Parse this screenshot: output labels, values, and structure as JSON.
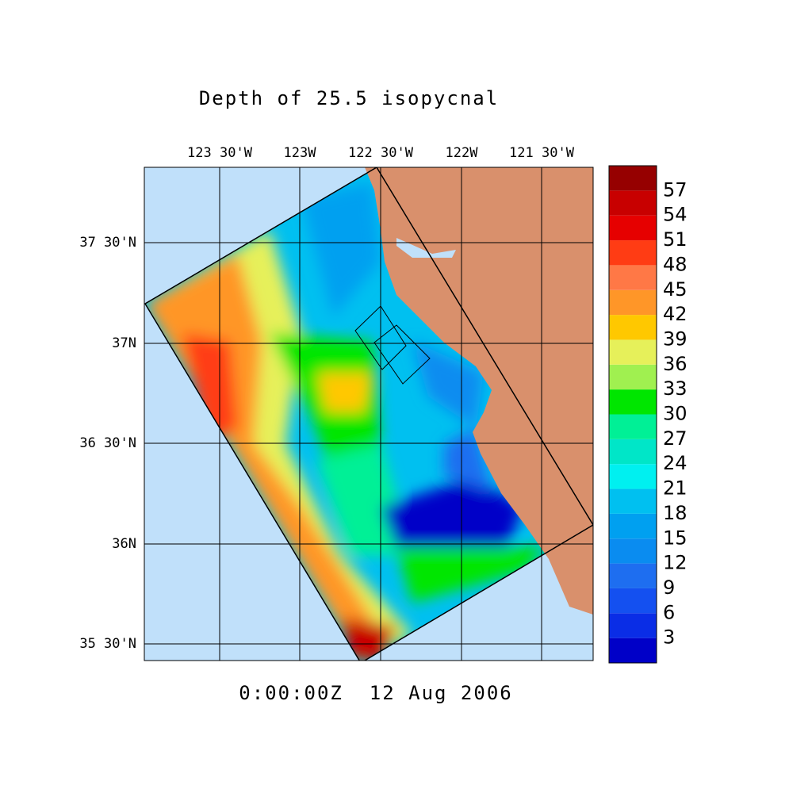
{
  "map": {
    "title": "Depth of 25.5 isopycnal",
    "lon_labels": [
      "123 30'W",
      "123W",
      "122 30'W",
      "122W",
      "121 30'W"
    ],
    "lat_labels": [
      "37 30'N",
      "37N",
      "36 30'N",
      "36N",
      "35 30'N"
    ],
    "time_label": "0:00:00Z  12 Aug 2006",
    "colorbar": {
      "levels": [
        3,
        6,
        9,
        12,
        15,
        18,
        21,
        24,
        27,
        30,
        33,
        36,
        39,
        42,
        45,
        48,
        51,
        54,
        57
      ],
      "colors": [
        "#0000c8",
        "#0a2de6",
        "#1450f0",
        "#1e6ef0",
        "#0a8cf0",
        "#00a0f0",
        "#00c0f0",
        "#00f0f0",
        "#00e6c8",
        "#00f096",
        "#00e600",
        "#a0f050",
        "#e6f05a",
        "#ffc800",
        "#ff9628",
        "#ff7846",
        "#ff3c14",
        "#e60000",
        "#c80000",
        "#960000"
      ]
    }
  }
}
